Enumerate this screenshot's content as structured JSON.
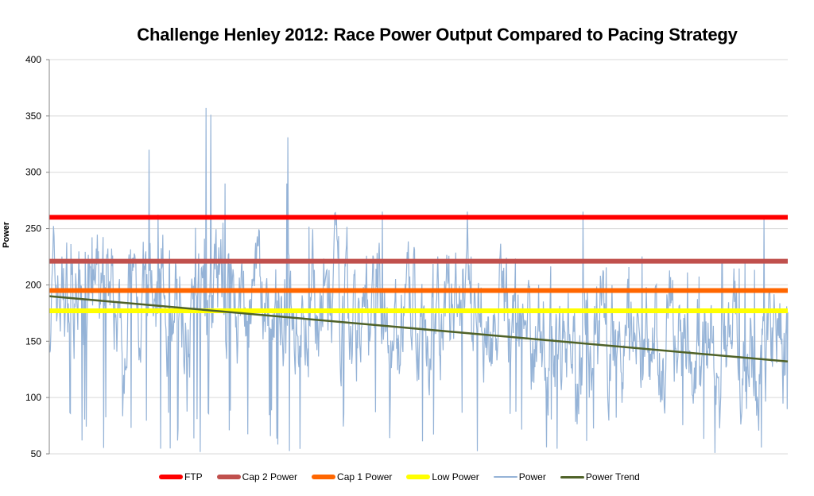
{
  "chart_data": {
    "type": "line",
    "title": "Challenge Henley 2012: Race Power Output Compared to Pacing Strategy",
    "xlabel": "",
    "ylabel": "Power",
    "ylim": [
      50,
      400
    ],
    "yticks": [
      50,
      100,
      150,
      200,
      250,
      300,
      350,
      400
    ],
    "grid": true,
    "legend_position": "bottom",
    "series": [
      {
        "name": "FTP",
        "type": "constant",
        "value": 260,
        "color": "#ff0000",
        "width": 6
      },
      {
        "name": "Cap 2 Power",
        "type": "constant",
        "value": 221,
        "color": "#c0504d",
        "width": 6
      },
      {
        "name": "Cap 1 Power",
        "type": "constant",
        "value": 195,
        "color": "#ff6600",
        "width": 6
      },
      {
        "name": "Low Power",
        "type": "constant",
        "value": 177,
        "color": "#ffff00",
        "width": 6
      },
      {
        "name": "Power",
        "type": "series",
        "color": "#95b3d7",
        "width": 1.2,
        "summary": {
          "min": 50,
          "max": 357,
          "typical_range": [
            100,
            250
          ],
          "peaks": [
            {
              "x_frac": 0.135,
              "value": 320
            },
            {
              "x_frac": 0.212,
              "value": 357
            },
            {
              "x_frac": 0.219,
              "value": 351
            },
            {
              "x_frac": 0.238,
              "value": 290
            },
            {
              "x_frac": 0.323,
              "value": 331
            },
            {
              "x_frac": 0.322,
              "value": 290
            },
            {
              "x_frac": 0.451,
              "value": 265
            },
            {
              "x_frac": 0.566,
              "value": 265
            },
            {
              "x_frac": 0.723,
              "value": 265
            },
            {
              "x_frac": 0.968,
              "value": 260
            }
          ]
        }
      },
      {
        "name": "Power Trend",
        "type": "linear",
        "start": 190,
        "end": 132,
        "color": "#4f6228",
        "width": 2.5
      }
    ]
  },
  "legend": [
    {
      "label": "FTP",
      "color": "#ff0000",
      "height": 6
    },
    {
      "label": "Cap 2 Power",
      "color": "#c0504d",
      "height": 6
    },
    {
      "label": "Cap 1 Power",
      "color": "#ff6600",
      "height": 6
    },
    {
      "label": "Low Power",
      "color": "#ffff00",
      "height": 6
    },
    {
      "label": "Power",
      "color": "#95b3d7",
      "height": 2
    },
    {
      "label": "Power Trend",
      "color": "#4f6228",
      "height": 3
    }
  ]
}
